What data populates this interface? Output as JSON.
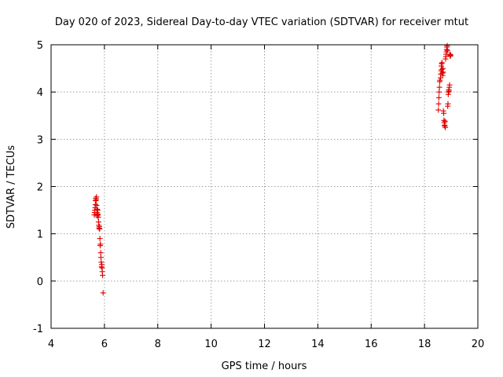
{
  "chart_data": {
    "type": "scatter",
    "title": "Day 020 of 2023, Sidereal Day-to-day VTEC variation (SDTVAR) for receiver mtut",
    "xlabel": "GPS time / hours",
    "ylabel": "SDTVAR / TECUs",
    "xlim": [
      4,
      20
    ],
    "ylim": [
      -1,
      5
    ],
    "xticks": [
      "4",
      "6",
      "8",
      "10",
      "12",
      "14",
      "16",
      "18",
      "20"
    ],
    "yticks": [
      "-1",
      "0",
      "1",
      "2",
      "3",
      "4",
      "5"
    ],
    "grid": true,
    "marker": "+",
    "color": "#e00000",
    "series": [
      {
        "name": "mtut",
        "points": [
          [
            5.62,
            1.4
          ],
          [
            5.63,
            1.45
          ],
          [
            5.64,
            1.5
          ],
          [
            5.65,
            1.55
          ],
          [
            5.66,
            1.62
          ],
          [
            5.67,
            1.7
          ],
          [
            5.68,
            1.75
          ],
          [
            5.69,
            1.72
          ],
          [
            5.7,
            1.78
          ],
          [
            5.71,
            1.6
          ],
          [
            5.72,
            1.52
          ],
          [
            5.72,
            1.45
          ],
          [
            5.73,
            1.38
          ],
          [
            5.74,
            1.42
          ],
          [
            5.75,
            1.5
          ],
          [
            5.76,
            1.4
          ],
          [
            5.77,
            1.35
          ],
          [
            5.78,
            1.25
          ],
          [
            5.79,
            1.18
          ],
          [
            5.8,
            1.12
          ],
          [
            5.81,
            1.15
          ],
          [
            5.82,
            1.1
          ],
          [
            5.83,
            0.9
          ],
          [
            5.84,
            0.75
          ],
          [
            5.85,
            0.78
          ],
          [
            5.86,
            0.6
          ],
          [
            5.87,
            0.5
          ],
          [
            5.88,
            0.4
          ],
          [
            5.89,
            0.3
          ],
          [
            5.9,
            0.35
          ],
          [
            5.91,
            0.28
          ],
          [
            5.92,
            0.2
          ],
          [
            5.93,
            0.12
          ],
          [
            5.95,
            -0.25
          ],
          [
            18.52,
            3.62
          ],
          [
            18.53,
            3.75
          ],
          [
            18.54,
            3.88
          ],
          [
            18.55,
            4.0
          ],
          [
            18.56,
            4.1
          ],
          [
            18.57,
            4.22
          ],
          [
            18.58,
            4.25
          ],
          [
            18.6,
            4.3
          ],
          [
            18.61,
            4.38
          ],
          [
            18.62,
            4.45
          ],
          [
            18.63,
            4.55
          ],
          [
            18.64,
            4.6
          ],
          [
            18.65,
            4.48
          ],
          [
            18.66,
            4.62
          ],
          [
            18.67,
            4.4
          ],
          [
            18.68,
            4.35
          ],
          [
            18.69,
            4.5
          ],
          [
            18.7,
            4.42
          ],
          [
            18.71,
            3.6
          ],
          [
            18.72,
            3.55
          ],
          [
            18.73,
            3.4
          ],
          [
            18.74,
            3.35
          ],
          [
            18.75,
            3.3
          ],
          [
            18.76,
            3.28
          ],
          [
            18.77,
            3.38
          ],
          [
            18.78,
            3.25
          ],
          [
            18.79,
            4.7
          ],
          [
            18.8,
            4.75
          ],
          [
            18.81,
            4.8
          ],
          [
            18.82,
            4.85
          ],
          [
            18.83,
            4.9
          ],
          [
            18.84,
            4.95
          ],
          [
            18.85,
            4.98
          ],
          [
            18.86,
            4.88
          ],
          [
            18.87,
            3.7
          ],
          [
            18.88,
            3.75
          ],
          [
            18.89,
            3.95
          ],
          [
            18.9,
            4.0
          ],
          [
            18.91,
            4.05
          ],
          [
            18.92,
            4.02
          ],
          [
            18.93,
            4.1
          ],
          [
            18.94,
            4.15
          ],
          [
            18.95,
            4.78
          ],
          [
            18.96,
            4.8
          ],
          [
            18.97,
            4.76
          ],
          [
            18.98,
            4.78
          ]
        ]
      }
    ]
  }
}
